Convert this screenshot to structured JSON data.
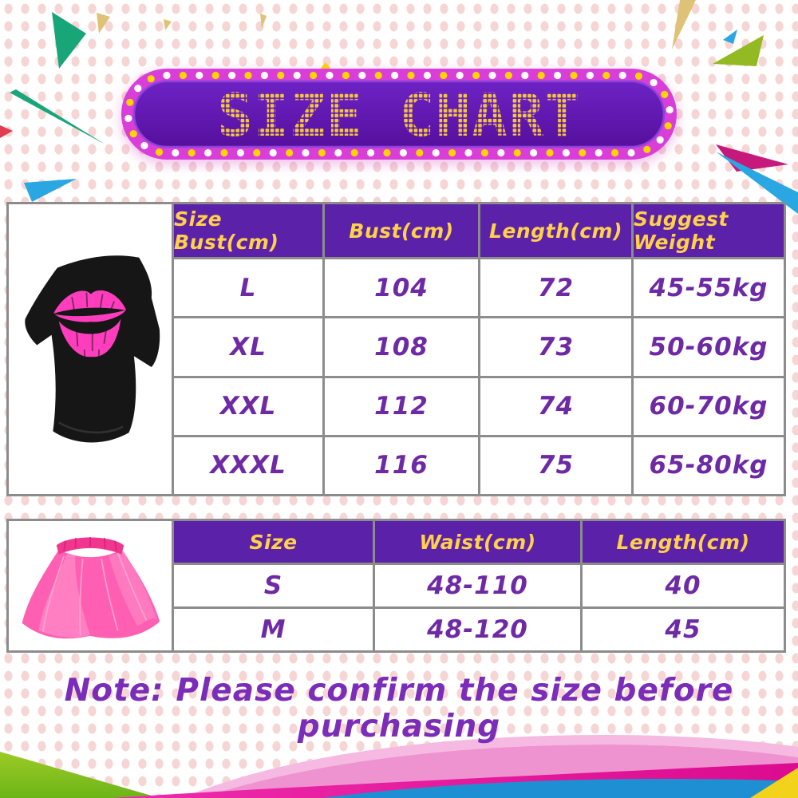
{
  "title": {
    "text": "SIZE CHART"
  },
  "shirt_section": {
    "image_alt": "black off-shoulder t-shirt with pink lips print",
    "table": {
      "headers": [
        "Size Bust(cm)",
        "Bust(cm)",
        "Length(cm)",
        "Suggest Weight"
      ],
      "rows": [
        [
          "L",
          "104",
          "72",
          "45-55kg"
        ],
        [
          "XL",
          "108",
          "73",
          "50-60kg"
        ],
        [
          "XXL",
          "112",
          "74",
          "60-70kg"
        ],
        [
          "XXXL",
          "116",
          "75",
          "65-80kg"
        ]
      ]
    }
  },
  "tutu_section": {
    "image_alt": "pink tutu skirt",
    "table": {
      "headers": [
        "Size",
        "Waist(cm)",
        "Length(cm)"
      ],
      "rows": [
        [
          "S",
          "48-110",
          "40"
        ],
        [
          "M",
          "48-120",
          "45"
        ]
      ]
    }
  },
  "note": {
    "text": "Note: Please confirm the size before purchasing"
  },
  "colors": {
    "banner_border": "#d93ed9",
    "banner_panel_top": "#6d23c4",
    "banner_panel_bottom": "#570f9e",
    "led_text": "#f3c641",
    "light_white": "#ffffff",
    "light_yellow": "#ffd400",
    "header_bg": "#5b21a8",
    "header_text": "#ffd04a",
    "cell_text": "#6e2aa5",
    "table_border": "#8c8c8c",
    "note_text": "#7b2cb8",
    "background_dot": "#f6d6d4",
    "lips_pink": "#ff3dbd",
    "tutu_pink": "#ff5fb2"
  },
  "chart_data": [
    {
      "type": "table",
      "title": "Shirt size chart",
      "columns": [
        "Size Bust(cm)",
        "Bust(cm)",
        "Length(cm)",
        "Suggest Weight"
      ],
      "rows": [
        [
          "L",
          104,
          72,
          "45-55kg"
        ],
        [
          "XL",
          108,
          73,
          "50-60kg"
        ],
        [
          "XXL",
          112,
          74,
          "60-70kg"
        ],
        [
          "XXXL",
          116,
          75,
          "65-80kg"
        ]
      ]
    },
    {
      "type": "table",
      "title": "Tutu skirt size chart",
      "columns": [
        "Size",
        "Waist(cm)",
        "Length(cm)"
      ],
      "rows": [
        [
          "S",
          "48-110",
          40
        ],
        [
          "M",
          "48-120",
          45
        ]
      ]
    }
  ]
}
